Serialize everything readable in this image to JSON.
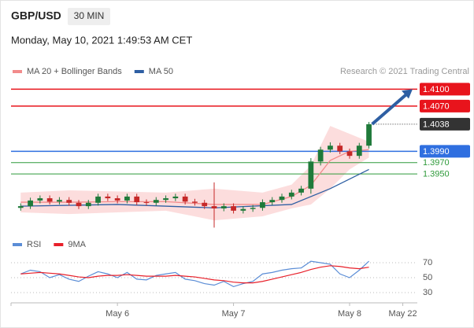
{
  "header": {
    "symbol": "GBP/USD",
    "timeframe": "30 MIN",
    "datetime": "Monday, May 10, 2021 1:49:53 AM CET",
    "credit": "Research © 2021 Trading Central"
  },
  "chart_data": [
    {
      "type": "candlestick",
      "x": [
        -20,
        -18,
        -16,
        -14,
        -12,
        -10,
        -8,
        -6,
        -4,
        -2,
        0,
        2,
        4,
        6,
        8,
        10,
        12,
        14,
        16,
        18,
        20,
        22,
        24,
        26,
        28,
        30,
        32,
        34,
        36,
        38,
        40,
        42,
        44,
        46,
        48,
        50,
        52
      ],
      "open": [
        1.389,
        1.3893,
        1.3903,
        1.3907,
        1.3901,
        1.3904,
        1.3899,
        1.3893,
        1.3899,
        1.391,
        1.3907,
        1.3903,
        1.391,
        1.39,
        1.3899,
        1.3904,
        1.3907,
        1.391,
        1.3901,
        1.3899,
        1.3893,
        1.3889,
        1.3893,
        1.3885,
        1.3888,
        1.389,
        1.39,
        1.3904,
        1.391,
        1.3917,
        1.3924,
        1.3972,
        1.3993,
        1.4,
        1.399,
        1.3982,
        1.4
      ],
      "high": [
        1.3898,
        1.3908,
        1.3912,
        1.3912,
        1.3909,
        1.3909,
        1.3904,
        1.3904,
        1.3915,
        1.3915,
        1.3912,
        1.3915,
        1.3915,
        1.3905,
        1.3909,
        1.3912,
        1.3915,
        1.3915,
        1.3906,
        1.3904,
        1.3935,
        1.3898,
        1.3898,
        1.3893,
        1.3895,
        1.3905,
        1.3909,
        1.3915,
        1.3922,
        1.3929,
        1.3978,
        1.3998,
        1.4006,
        1.4005,
        1.3995,
        1.4005,
        1.4042
      ],
      "low": [
        1.3885,
        1.3888,
        1.3898,
        1.3896,
        1.3896,
        1.3894,
        1.3888,
        1.3888,
        1.3894,
        1.3902,
        1.3898,
        1.3898,
        1.3895,
        1.3894,
        1.3894,
        1.3899,
        1.3902,
        1.3896,
        1.3894,
        1.3888,
        1.3855,
        1.3884,
        1.388,
        1.388,
        1.3883,
        1.3885,
        1.3895,
        1.3899,
        1.3905,
        1.3912,
        1.3915,
        1.3965,
        1.3988,
        1.3985,
        1.3977,
        1.3977,
        1.3995
      ],
      "close": [
        1.3893,
        1.3903,
        1.3907,
        1.3901,
        1.3904,
        1.3899,
        1.3893,
        1.3899,
        1.391,
        1.3907,
        1.3903,
        1.391,
        1.39,
        1.3899,
        1.3904,
        1.3907,
        1.391,
        1.3901,
        1.3899,
        1.3893,
        1.3889,
        1.3893,
        1.3885,
        1.3888,
        1.389,
        1.39,
        1.3904,
        1.391,
        1.3917,
        1.3924,
        1.3972,
        1.3993,
        1.4,
        1.399,
        1.3982,
        1.4,
        1.4038
      ],
      "up_color": "#1f7a3a",
      "down_color": "#c62828",
      "series": [
        {
          "name": "MA 20 + Bollinger Bands",
          "color": "#f28b8b",
          "band_color": "#fbd5d5",
          "x": [
            -20,
            -10,
            0,
            10,
            20,
            30,
            36,
            40,
            44,
            48,
            52
          ],
          "values": [
            1.39,
            1.39,
            1.3901,
            1.3901,
            1.3896,
            1.3896,
            1.391,
            1.393,
            1.3974,
            1.399,
            1.3993
          ],
          "upper": [
            1.3917,
            1.3921,
            1.3919,
            1.3917,
            1.3924,
            1.3917,
            1.3931,
            1.3965,
            1.4035,
            1.4021,
            1.4007
          ],
          "lower": [
            1.3882,
            1.3879,
            1.3882,
            1.3885,
            1.3868,
            1.3875,
            1.3889,
            1.3896,
            1.3924,
            1.3958,
            1.3979
          ]
        },
        {
          "name": "MA 50",
          "color": "#2e5fa3",
          "x": [
            -20,
            0,
            20,
            36,
            44,
            52
          ],
          "values": [
            1.3893,
            1.3896,
            1.389,
            1.3896,
            1.3924,
            1.3958
          ]
        }
      ],
      "levels": [
        {
          "value": 1.41,
          "label": "1.4100",
          "color": "#e8141c",
          "boxed": true
        },
        {
          "value": 1.407,
          "label": "1.4070",
          "color": "#e8141c",
          "boxed": true
        },
        {
          "value": 1.4038,
          "label": "1.4038",
          "color": "#333333",
          "boxed": true
        },
        {
          "value": 1.399,
          "label": "1.3990",
          "color": "#2f6fe0",
          "boxed": true
        },
        {
          "value": 1.397,
          "label": "1.3970",
          "color": "#2e9a3a",
          "boxed": false
        },
        {
          "value": 1.395,
          "label": "1.3950",
          "color": "#2e9a3a",
          "boxed": false
        }
      ],
      "xlim": [
        -22,
        62
      ],
      "ylim": [
        1.385,
        1.412
      ],
      "xticks": [
        {
          "value": 0,
          "label": "May 6"
        },
        {
          "value": 24,
          "label": "May 7"
        },
        {
          "value": 48,
          "label": "May 8"
        },
        {
          "value": 59,
          "label": "May 22"
        }
      ]
    },
    {
      "type": "line",
      "series": [
        {
          "name": "RSI",
          "color": "#5b8dd6",
          "values": [
            55,
            60,
            58,
            50,
            54,
            48,
            45,
            52,
            58,
            55,
            50,
            57,
            48,
            47,
            53,
            55,
            57,
            48,
            46,
            42,
            40,
            45,
            38,
            42,
            45,
            55,
            57,
            60,
            62,
            63,
            72,
            70,
            68,
            55,
            50,
            60,
            72
          ]
        },
        {
          "name": "9MA",
          "color": "#e8202a",
          "values": [
            55,
            56,
            57,
            56,
            55,
            53,
            51,
            50,
            52,
            53,
            53,
            54,
            53,
            52,
            52,
            52,
            53,
            52,
            51,
            49,
            47,
            46,
            44,
            43,
            43,
            45,
            48,
            51,
            54,
            57,
            61,
            64,
            66,
            65,
            63,
            62,
            64
          ]
        }
      ],
      "ylim": [
        20,
        80
      ],
      "yticks": [
        70,
        50,
        30
      ],
      "grid": true
    }
  ]
}
